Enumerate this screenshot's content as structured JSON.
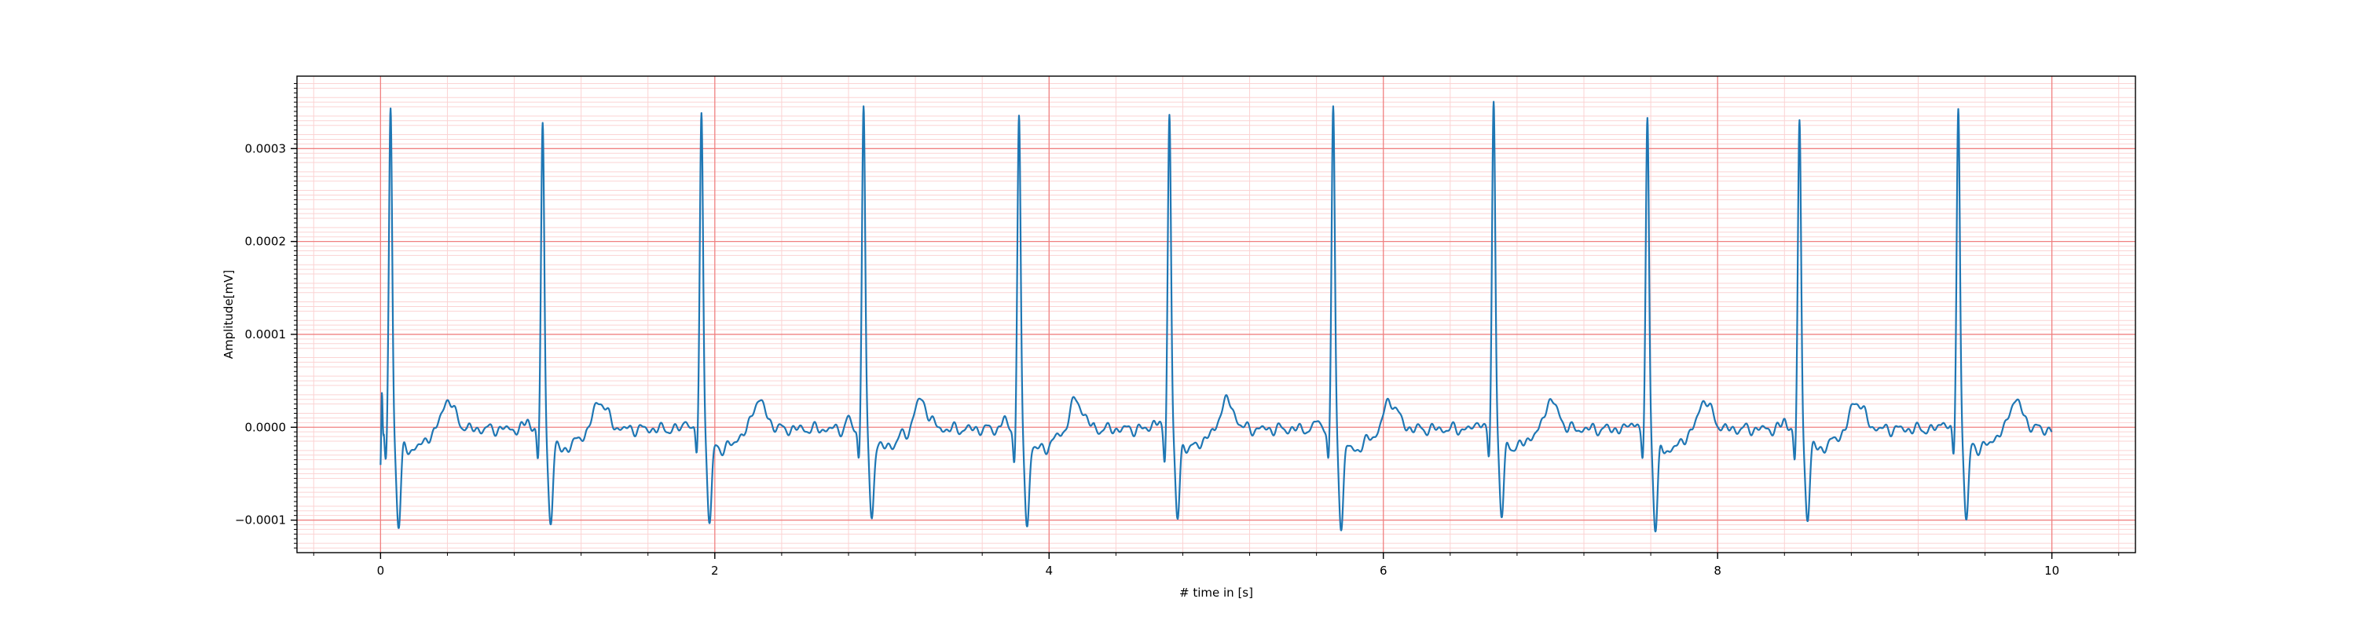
{
  "chart_data": {
    "type": "line",
    "title": "",
    "xlabel": "# time in [s]",
    "ylabel": "Amplitude[mV]",
    "xlim": [
      -0.5,
      10.5
    ],
    "ylim": [
      -0.000135,
      0.000378
    ],
    "xticks": [
      0,
      2,
      4,
      6,
      8,
      10
    ],
    "xtick_labels": [
      "0",
      "2",
      "4",
      "6",
      "8",
      "10"
    ],
    "yticks": [
      -0.0001,
      0.0,
      0.0001,
      0.0002,
      0.0003
    ],
    "ytick_labels": [
      "−0.0001",
      "0.0000",
      "0.0001",
      "0.0002",
      "0.0003"
    ],
    "grid": {
      "major": true,
      "minor": true,
      "major_color": "#f08080",
      "minor_color": "#fbd3d3"
    },
    "legend": "none",
    "colors": {
      "line": "#1f77b4",
      "frame": "#000000",
      "background": "#ffffff"
    },
    "series": [
      {
        "beats": [
          {
            "r_time": 0.06,
            "r_amp": 0.000343,
            "s_amp": -0.000107
          },
          {
            "r_time": 0.97,
            "r_amp": 0.000322,
            "s_amp": -0.000103
          },
          {
            "r_time": 1.92,
            "r_amp": 0.000345,
            "s_amp": -0.000103
          },
          {
            "r_time": 2.89,
            "r_amp": 0.000348,
            "s_amp": -9.6e-05
          },
          {
            "r_time": 3.82,
            "r_amp": 0.000331,
            "s_amp": -0.000106
          },
          {
            "r_time": 4.72,
            "r_amp": 0.000339,
            "s_amp": -9.8e-05
          },
          {
            "r_time": 5.7,
            "r_amp": 0.000342,
            "s_amp": -0.000106
          },
          {
            "r_time": 6.66,
            "r_amp": 0.000355,
            "s_amp": -9.5e-05
          },
          {
            "r_time": 7.58,
            "r_amp": 0.000334,
            "s_amp": -0.000111
          },
          {
            "r_time": 8.49,
            "r_amp": 0.000325,
            "s_amp": -0.0001
          },
          {
            "r_time": 9.44,
            "r_amp": 0.000347,
            "s_amp": -0.0001
          }
        ],
        "t_wave_amp": 3e-05,
        "baseline": -2e-06,
        "start": {
          "t": 0.0,
          "amp": -5e-05
        },
        "end": {
          "t": 10.0,
          "amp": -5e-06
        }
      }
    ]
  }
}
